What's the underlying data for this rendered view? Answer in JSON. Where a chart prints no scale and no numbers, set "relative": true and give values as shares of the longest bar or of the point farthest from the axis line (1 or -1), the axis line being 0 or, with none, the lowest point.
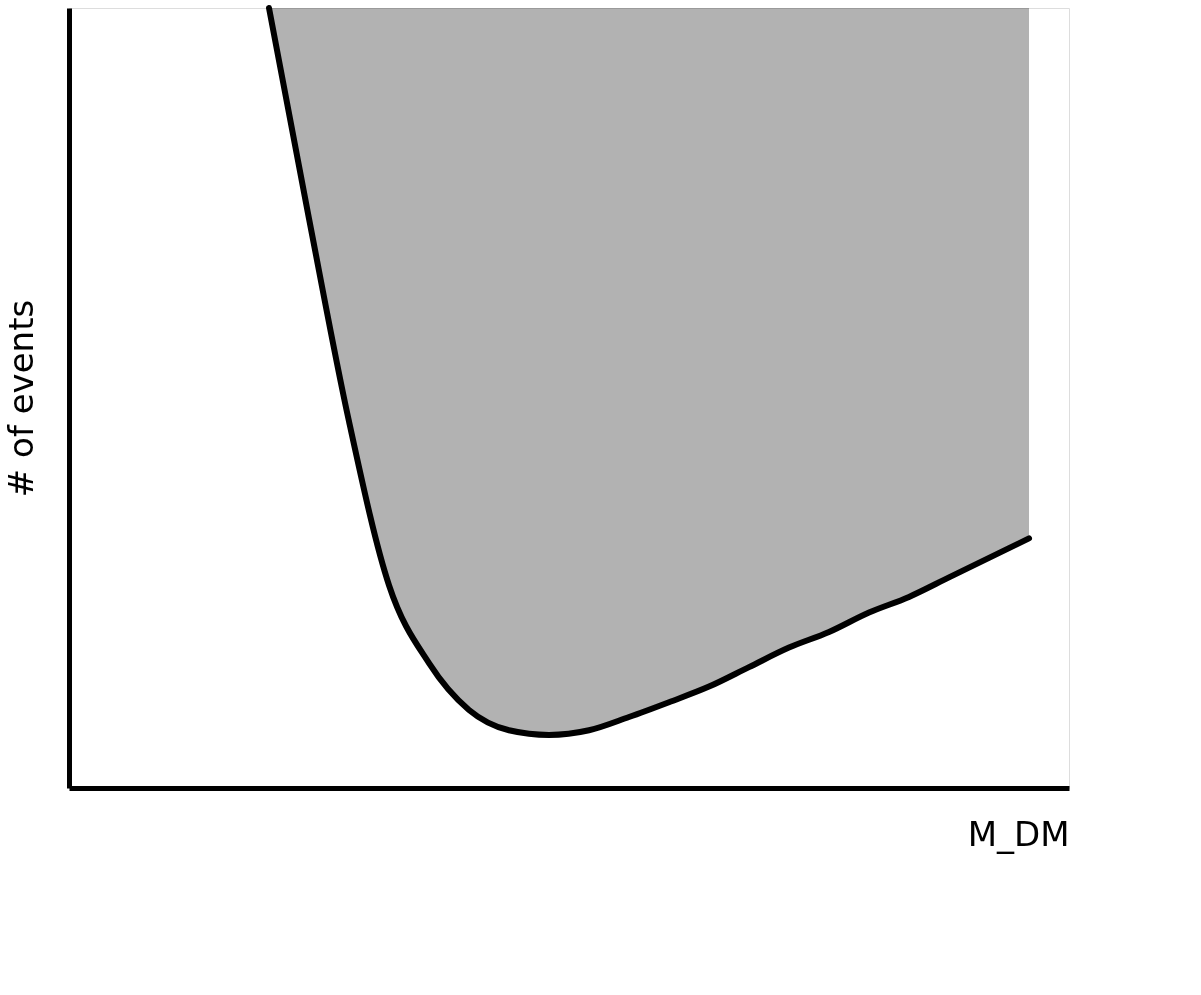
{
  "chart_data": {
    "type": "line",
    "relative": true,
    "grid": false,
    "xlabel": "M_DM",
    "ylabel": "# of events",
    "categories": [
      null,
      null,
      null,
      null,
      null,
      null,
      null,
      null,
      null,
      null,
      null,
      null,
      null,
      null,
      null,
      null,
      null,
      null,
      null,
      null,
      null,
      null,
      null,
      null,
      null,
      null
    ],
    "series": [
      {
        "color": "#000000",
        "values": [
          null,
          null,
          null,
          null,
          null,
          1.0,
          0.73,
          0.47,
          0.26,
          0.16,
          0.1,
          0.074,
          0.068,
          0.074,
          0.091,
          0.11,
          0.13,
          0.155,
          0.18,
          0.2,
          0.225,
          0.245,
          0.27,
          0.295,
          0.32,
          null
        ],
        "lower": [
          null,
          null,
          null,
          null,
          null,
          1.0,
          0.73,
          0.47,
          0.26,
          0.16,
          0.1,
          0.074,
          0.068,
          0.074,
          0.091,
          0.11,
          0.13,
          0.155,
          0.18,
          0.2,
          0.225,
          0.245,
          0.27,
          0.295,
          0.32,
          null
        ],
        "upper": [
          null,
          null,
          null,
          null,
          null,
          1.0,
          1.0,
          1.0,
          1.0,
          1.0,
          1.0,
          1.0,
          1.0,
          1.0,
          1.0,
          1.0,
          1.0,
          1.0,
          1.0,
          1.0,
          1.0,
          1.0,
          1.0,
          1.0,
          1.0,
          null
        ]
      }
    ]
  }
}
